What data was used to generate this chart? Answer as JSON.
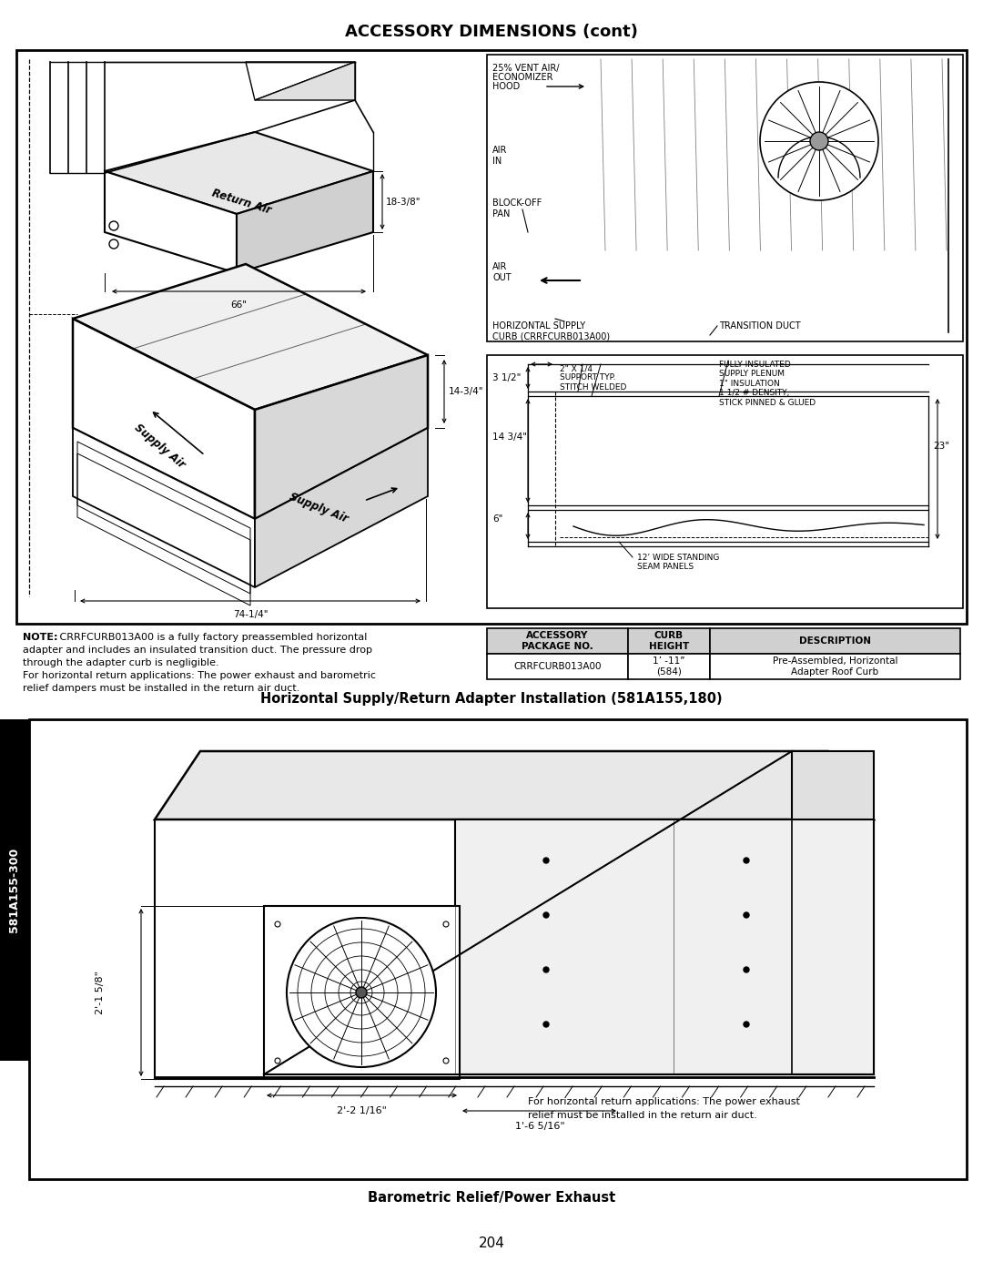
{
  "page_title": "ACCESSORY DIMENSIONS (cont)",
  "section1_title": "Horizontal Supply/Return Adapter Installation (581A155,180)",
  "section2_title": "Barometric Relief/Power Exhaust",
  "page_number": "204",
  "sidebar_text": "581A155-300",
  "table_headers": [
    "ACCESSORY\nPACKAGE NO.",
    "CURB\nHEIGHT",
    "DESCRIPTION"
  ],
  "table_row": [
    "CRRFCURB013A00",
    "1’ -11”\n(584)",
    "Pre-Assembled, Horizontal\nAdapter Roof Curb"
  ],
  "note1": "NOTE:",
  "note2": " CRRFCURB013A00 is a fully factory preassembled horizontal",
  "note3": "adapter and includes an insulated transition duct. The pressure drop",
  "note4": "through the adapter curb is negligible.",
  "note5": "For horizontal return applications: The power exhaust and barometric",
  "note6": "relief dampers must be installed in the return air duct.",
  "note_bot1": "For horizontal return applications: The power exhaust",
  "note_bot2": "relief must be installed in the return air duct.",
  "eco_label1": "25% VENT AIR/",
  "eco_label2": "ECONOMIZER",
  "eco_label3": "HOOD",
  "air_in": "AIR\nIN",
  "block_off": "BLOCK-OFF\nPAN",
  "air_out": "AIR\nOUT",
  "horiz_supply": "HORIZONTAL SUPPLY\nCURB (CRRFCURB013A00)",
  "trans_duct": "TRANSITION DUCT",
  "fully_ins": "FULLY INSULATED\nSUPPLY PLENUM\n1\" INSULATION\n1 1/2 # DENSITY,\nSTICK PINNED & GLUED",
  "support_typ": "2\" X 1/4\nSUPPORT TYP.\nSTITCH WELDED",
  "seam_panels": "12’ WIDE STANDING\nSEAM PANELS",
  "dim_3half": "3 1/2\"",
  "dim_14_3q": "14 3/4\"",
  "dim_6": "6\"",
  "dim_23": "23\"",
  "dim_18_3e": "18-3/8\"",
  "dim_66": "66\"",
  "dim_14_3q2": "14-3/4\"",
  "dim_74_1q": "74-1/4\"",
  "return_air": "Return Air",
  "supply_air1": "Supply Air",
  "supply_air2": "Supply Air",
  "fan_dim1": "2'-1 5/8\"",
  "fan_dim2": "2'-2 1/16\"",
  "fan_dim3": "1'-6 5/16\"",
  "bg_color": "#ffffff",
  "border_color": "#000000",
  "text_color": "#000000"
}
